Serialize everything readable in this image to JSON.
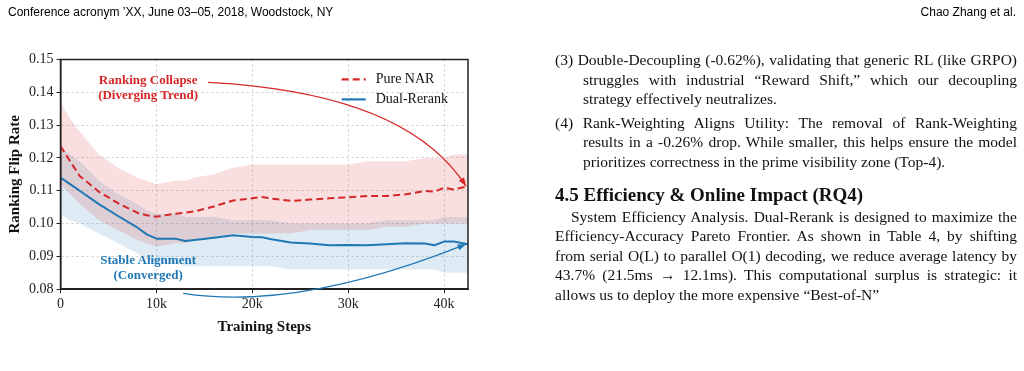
{
  "chart_data": {
    "type": "line",
    "xlabel": "Training Steps",
    "ylabel": "Ranking Flip Rate",
    "x": [
      0,
      1000,
      2000,
      4000,
      6000,
      8000,
      9000,
      10000,
      12000,
      13000,
      14000,
      16000,
      18000,
      20000,
      21000,
      22000,
      24000,
      26000,
      28000,
      30000,
      32000,
      34000,
      36000,
      38000,
      39000,
      40000,
      41000,
      42500
    ],
    "series": [
      {
        "name": "Pure NAR",
        "color": "#d62728",
        "line_style": "dashed",
        "values": [
          0.1236,
          0.119,
          0.1145,
          0.1097,
          0.1062,
          0.1033,
          0.1025,
          0.1021,
          0.103,
          0.1033,
          0.1037,
          0.1052,
          0.107,
          0.1077,
          0.1081,
          0.1076,
          0.1069,
          0.1073,
          0.1077,
          0.108,
          0.1084,
          0.1084,
          0.1089,
          0.1099,
          0.1097,
          0.1109,
          0.1104,
          0.1114
        ],
        "upper": [
          0.137,
          0.132,
          0.128,
          0.121,
          0.117,
          0.114,
          0.113,
          0.112,
          0.113,
          0.113,
          0.114,
          0.115,
          0.117,
          0.118,
          0.118,
          0.118,
          0.118,
          0.118,
          0.118,
          0.118,
          0.119,
          0.119,
          0.119,
          0.12,
          0.12,
          0.12,
          0.121,
          0.121
        ],
        "lower": [
          0.112,
          0.109,
          0.106,
          0.101,
          0.098,
          0.095,
          0.094,
          0.093,
          0.094,
          0.094,
          0.095,
          0.096,
          0.097,
          0.097,
          0.097,
          0.097,
          0.097,
          0.098,
          0.098,
          0.098,
          0.098,
          0.099,
          0.099,
          0.1,
          0.1,
          0.1,
          0.1,
          0.1
        ]
      },
      {
        "name": "Dual-Rerank",
        "color": "#1f77b4",
        "line_style": "solid",
        "values": [
          0.114,
          0.112,
          0.11,
          0.1059,
          0.1023,
          0.0988,
          0.0967,
          0.0954,
          0.0954,
          0.0947,
          0.095,
          0.0957,
          0.0964,
          0.0959,
          0.0958,
          0.0952,
          0.0942,
          0.0939,
          0.0934,
          0.0935,
          0.0934,
          0.0937,
          0.094,
          0.0939,
          0.0934,
          0.0945,
          0.0945,
          0.0937
        ],
        "upper": [
          0.123,
          0.121,
          0.119,
          0.113,
          0.109,
          0.106,
          0.104,
          0.103,
          0.103,
          0.102,
          0.102,
          0.102,
          0.101,
          0.101,
          0.101,
          0.101,
          0.1,
          0.1,
          0.1,
          0.1,
          0.1,
          0.101,
          0.101,
          0.101,
          0.101,
          0.102,
          0.102,
          0.102
        ],
        "lower": [
          0.103,
          0.101,
          0.1,
          0.097,
          0.094,
          0.091,
          0.089,
          0.088,
          0.088,
          0.087,
          0.087,
          0.087,
          0.087,
          0.087,
          0.087,
          0.087,
          0.086,
          0.086,
          0.086,
          0.086,
          0.086,
          0.086,
          0.086,
          0.086,
          0.086,
          0.085,
          0.085,
          0.085
        ]
      }
    ],
    "xlim": [
      0,
      42500
    ],
    "xticks": [
      {
        "value": 0,
        "label": "0"
      },
      {
        "value": 10000,
        "label": "10k"
      },
      {
        "value": 20000,
        "label": "20k"
      },
      {
        "value": 30000,
        "label": "30k"
      },
      {
        "value": 40000,
        "label": "40k"
      }
    ],
    "ylim": [
      0.08,
      0.15
    ],
    "yticks": [
      {
        "value": 0.08,
        "label": "0.08"
      },
      {
        "value": 0.09,
        "label": "0.09"
      },
      {
        "value": 0.1,
        "label": "0.10"
      },
      {
        "value": 0.11,
        "label": "0.11"
      },
      {
        "value": 0.12,
        "label": "0.12"
      },
      {
        "value": 0.13,
        "label": "0.13"
      },
      {
        "value": 0.14,
        "label": "0.14"
      },
      {
        "value": 0.15,
        "label": "0.15"
      }
    ],
    "grid": true,
    "legend": "top right",
    "marker": "none",
    "annotations": [
      "Ranking Collapse\n(Diverging Trend)",
      "Stable Alignment\n(Converged)",
      "Conference acronym ’XX, June 03–05, 2018, Woodstock, NY",
      "Chao Zhang et al.",
      "(3) Double-Decoupling (-0.62%), validating that generic RL (like GRPO) struggles with industrial “Reward Shift,” which our decoupling strategy effectively neutralizes.",
      "(4) Rank-Weighting Aligns Utility: The removal of Rank-Weighting results in a -0.26% drop. While smaller, this helps ensure the model prioritizes correctness in the prime visibility zone (Top-4).",
      "4.5 Efficiency & Online Impact (RQ4)",
      "System Efficiency Analysis. Dual-Rerank is designed to maximize the Efficiency-Accuracy Pareto Frontier. As shown in Table 4, by shifting from serial O(L) to parallel O(1) decoding, we reduce average latency by 43.7% (21.5ms → 12.1ms). This computational surplus is strategic: it allows us to deploy the more expensive “Best-of-N”"
    ]
  }
}
